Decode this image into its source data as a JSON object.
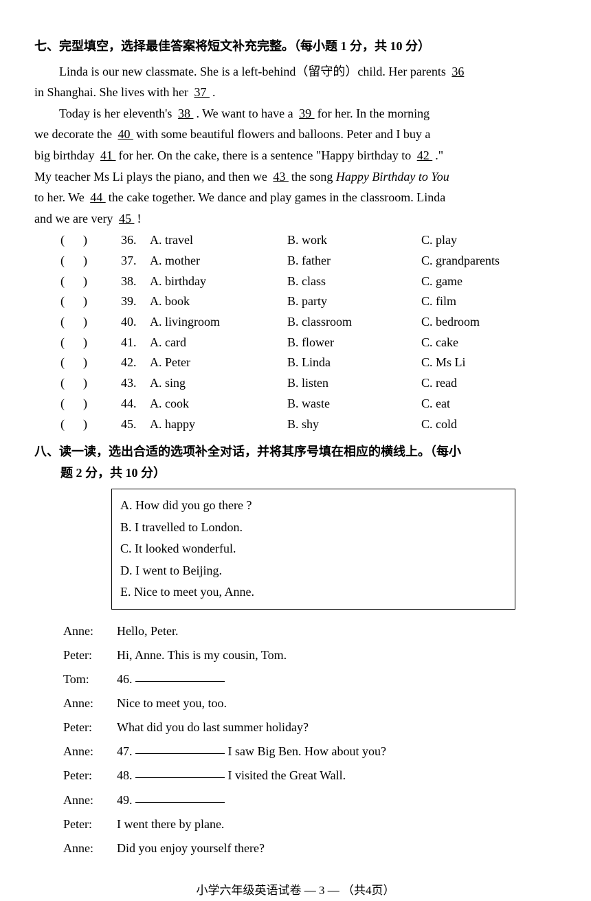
{
  "section7": {
    "title": "七、完型填空，选择最佳答案将短文补充完整。（每小题 1 分，共 10 分）",
    "passage": {
      "p1_pre": "Linda is our new classmate. She is a left-behind（留守的）child. Her parents ",
      "b36": "   36   ",
      "p2_pre": "in Shanghai. She lives with her ",
      "b37": "   37   ",
      "p2_post": ".",
      "p3_pre": "Today is her eleventh's ",
      "b38": "   38   ",
      "p3_mid1": ". We want to have a ",
      "b39": "   39   ",
      "p3_mid2": " for her. In the morning",
      "p4_pre": "we decorate the ",
      "b40": "   40   ",
      "p4_mid": " with some beautiful flowers and balloons. Peter and I buy a",
      "p5_pre": "big birthday ",
      "b41": "   41   ",
      "p5_mid1": " for her. On the cake, there is a sentence \"Happy birthday to ",
      "b42": "   42   ",
      "p5_post": ".\"",
      "p6_pre": "My teacher Ms Li plays the piano, and then we ",
      "b43": "   43   ",
      "p6_mid": " the song ",
      "p6_italic": "Happy Birthday to You",
      "p7_pre": "to her. We ",
      "b44": "   44   ",
      "p7_mid": " the cake together. We dance and play games in the classroom. Linda",
      "p8_pre": "and we are very ",
      "b45": "   45   ",
      "p8_post": "!"
    },
    "questions": [
      {
        "num": "36.",
        "a": "A.  travel",
        "b": "B.  work",
        "c": "C.  play"
      },
      {
        "num": "37.",
        "a": "A.  mother",
        "b": "B.  father",
        "c": "C.  grandparents"
      },
      {
        "num": "38.",
        "a": "A.  birthday",
        "b": "B.  class",
        "c": "C.  game"
      },
      {
        "num": "39.",
        "a": "A.  book",
        "b": "B.  party",
        "c": "C.  film"
      },
      {
        "num": "40.",
        "a": "A.  livingroom",
        "b": "B.  classroom",
        "c": "C.  bedroom"
      },
      {
        "num": "41.",
        "a": "A.  card",
        "b": "B.  flower",
        "c": "C.  cake"
      },
      {
        "num": "42.",
        "a": "A.  Peter",
        "b": "B.  Linda",
        "c": "C.  Ms Li"
      },
      {
        "num": "43.",
        "a": "A.  sing",
        "b": "B.  listen",
        "c": "C.  read"
      },
      {
        "num": "44.",
        "a": "A.  cook",
        "b": "B.  waste",
        "c": "C.  eat"
      },
      {
        "num": "45.",
        "a": "A.  happy",
        "b": "B.  shy",
        "c": "C.  cold"
      }
    ]
  },
  "section8": {
    "title": "八、读一读，选出合适的选项补全对话，并将其序号填在相应的横线上。（每小",
    "subtitle": "题 2 分，共 10 分）",
    "options": [
      "A.  How did you go there ?",
      "B.  I travelled to London.",
      "C.  It looked wonderful.",
      "D.  I went to Beijing.",
      "E.  Nice to meet you, Anne."
    ],
    "dialogue": [
      {
        "speaker": "Anne:",
        "text": "Hello, Peter."
      },
      {
        "speaker": "Peter:",
        "text": "Hi, Anne. This is my cousin, Tom."
      },
      {
        "speaker": "Tom:",
        "text": "46. ",
        "blank": true
      },
      {
        "speaker": "Anne:",
        "text": "Nice to meet you, too."
      },
      {
        "speaker": "Peter:",
        "text": "What did you do last summer holiday?"
      },
      {
        "speaker": "Anne:",
        "text": "47. ",
        "blank": true,
        "after": " I saw Big Ben. How about you?"
      },
      {
        "speaker": "Peter:",
        "text": "48. ",
        "blank": true,
        "after": " I visited the Great Wall."
      },
      {
        "speaker": "Anne:",
        "text": "49. ",
        "blank": true
      },
      {
        "speaker": "Peter:",
        "text": "I went there by plane."
      },
      {
        "speaker": "Anne:",
        "text": "Did you enjoy yourself there?"
      }
    ]
  },
  "footer": "小学六年级英语试卷   — 3 —   （共4页）"
}
